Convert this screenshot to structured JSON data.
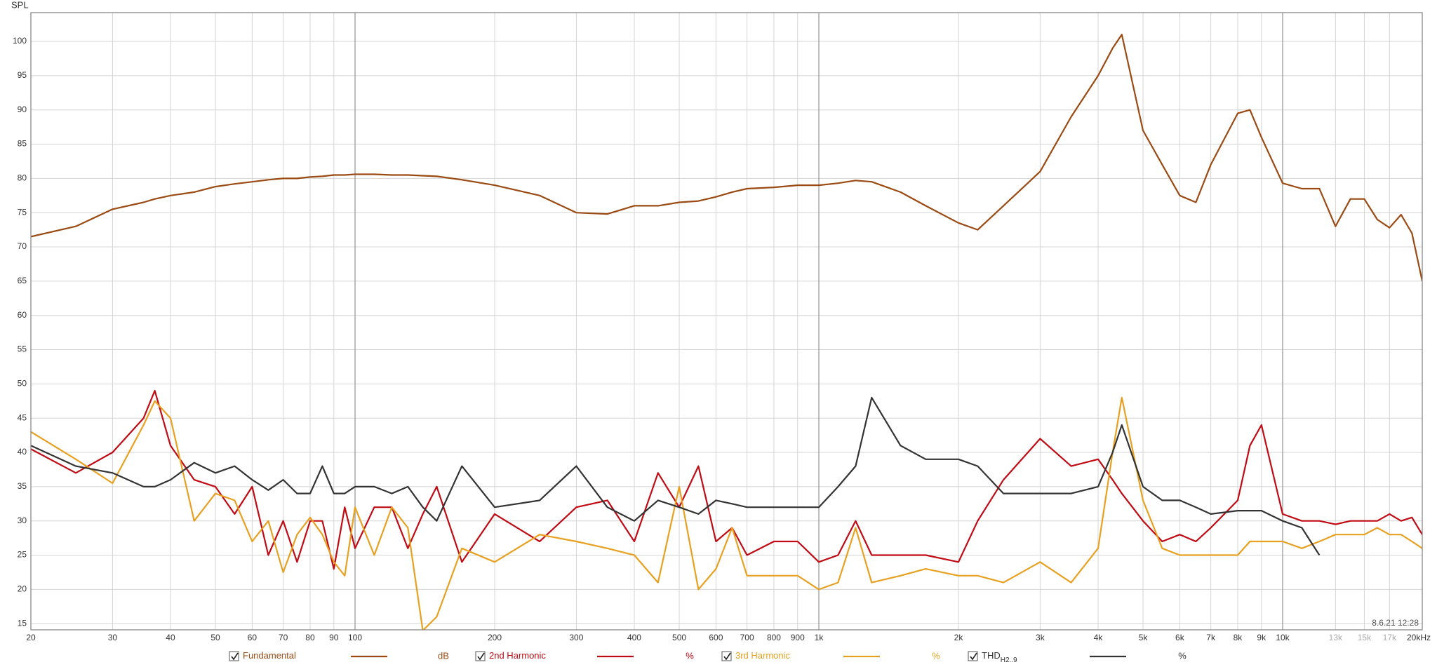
{
  "chart_data": {
    "type": "line",
    "y_label": "SPL",
    "timestamp": "8.6.21 12:28",
    "xscale": "log",
    "grid": true,
    "xlim": [
      20,
      20000
    ],
    "ylim": [
      14.1,
      104.2
    ],
    "xticks": [
      20,
      30,
      40,
      50,
      60,
      70,
      80,
      90,
      100,
      200,
      300,
      400,
      500,
      600,
      700,
      800,
      900,
      {
        "value": 1000,
        "label": "1k"
      },
      {
        "value": 2000,
        "label": "2k"
      },
      {
        "value": 3000,
        "label": "3k"
      },
      {
        "value": 4000,
        "label": "4k"
      },
      {
        "value": 5000,
        "label": "5k"
      },
      {
        "value": 6000,
        "label": "6k"
      },
      {
        "value": 7000,
        "label": "7k"
      },
      {
        "value": 8000,
        "label": "8k"
      },
      {
        "value": 9000,
        "label": "9k"
      },
      {
        "value": 10000,
        "label": "10k"
      },
      {
        "value": 13000,
        "label": "13k",
        "muted": true
      },
      {
        "value": 15000,
        "label": "15k",
        "muted": true
      },
      {
        "value": 17000,
        "label": "17k",
        "muted": true
      },
      {
        "value": 20000,
        "label": "20kHz"
      }
    ],
    "yticks": [
      15,
      20,
      25,
      30,
      35,
      40,
      45,
      50,
      55,
      60,
      65,
      70,
      75,
      80,
      85,
      90,
      95,
      100
    ],
    "x": [
      20,
      25,
      30,
      35,
      37,
      40,
      45,
      50,
      55,
      60,
      65,
      70,
      75,
      80,
      85,
      90,
      95,
      100,
      110,
      120,
      130,
      140,
      150,
      170,
      200,
      250,
      300,
      350,
      400,
      450,
      500,
      550,
      600,
      650,
      700,
      800,
      900,
      1000,
      1100,
      1200,
      1300,
      1500,
      1700,
      2000,
      2200,
      2500,
      3000,
      3500,
      4000,
      4300,
      4500,
      5000,
      5500,
      6000,
      6500,
      7000,
      8000,
      8500,
      9000,
      10000,
      11000,
      12000,
      13000,
      14000,
      15000,
      16000,
      17000,
      18000,
      19000,
      20000
    ],
    "series": [
      {
        "name": "Fundamental",
        "unit": "dB",
        "color": "#9a4a12",
        "values": [
          71.5,
          73,
          75.5,
          76.5,
          77,
          77.5,
          78,
          78.8,
          79.2,
          79.5,
          79.8,
          80,
          80,
          80.2,
          80.3,
          80.5,
          80.5,
          80.6,
          80.6,
          80.5,
          80.5,
          80.4,
          80.3,
          79.8,
          79,
          77.5,
          75,
          74.8,
          76,
          76,
          76.5,
          76.7,
          77.3,
          78,
          78.5,
          78.7,
          79,
          79,
          79.3,
          79.7,
          79.5,
          78,
          76,
          73.5,
          72.5,
          76,
          81,
          89,
          95,
          99,
          101,
          87,
          82,
          77.5,
          76.5,
          82,
          89.5,
          90,
          86,
          79.3,
          78.5,
          78.5,
          73,
          77,
          77,
          74,
          72.8,
          74.7,
          72,
          65
        ]
      },
      {
        "name": "2nd Harmonic",
        "unit": "%",
        "color": "#c00a14",
        "values": [
          40.5,
          37,
          40,
          45,
          49,
          41,
          36,
          35,
          31,
          35,
          25,
          30,
          24,
          30,
          30,
          23,
          32,
          26,
          32,
          32,
          26,
          31,
          35,
          24,
          31,
          27,
          32,
          33,
          27,
          37,
          32,
          38,
          27,
          29,
          25,
          27,
          27,
          24,
          25,
          30,
          25,
          25,
          25,
          24,
          30,
          36,
          42,
          38,
          39,
          36,
          34,
          30,
          27,
          28,
          27,
          29,
          33,
          41,
          44,
          31,
          30,
          30,
          29.5,
          30,
          30,
          30,
          31,
          30,
          30.5,
          28
        ]
      },
      {
        "name": "3rd Harmonic",
        "unit": "%",
        "color": "#e8a020",
        "values": [
          43,
          39,
          35.5,
          44,
          47.5,
          45,
          30,
          34,
          33,
          27,
          30,
          22.5,
          28,
          30.5,
          28,
          24,
          22,
          32,
          25,
          32,
          29,
          14,
          16,
          26,
          24,
          28,
          27,
          26,
          25,
          21,
          35,
          20,
          23,
          29,
          22,
          22,
          22,
          20,
          21,
          29,
          21,
          22,
          23,
          22,
          22,
          21,
          24,
          21,
          26,
          40,
          48,
          33,
          26,
          25,
          25,
          25,
          25,
          27,
          27,
          27,
          26,
          27,
          28,
          28,
          28,
          29,
          28,
          28,
          27,
          26
        ]
      },
      {
        "name": "THD",
        "name_sub": "H2..9",
        "unit": "%",
        "color": "#333333",
        "values": [
          41,
          38,
          37,
          35,
          35,
          36,
          38.5,
          37,
          38,
          36,
          34.5,
          36,
          34,
          34,
          38,
          34,
          34,
          35,
          35,
          34,
          35,
          32,
          30,
          38,
          32,
          33,
          38,
          32,
          30,
          33,
          32,
          31,
          33,
          32.5,
          32,
          32,
          32,
          32,
          35,
          38,
          48,
          41,
          39,
          39,
          38,
          34,
          34,
          34,
          35,
          40,
          44,
          35,
          33,
          33,
          32,
          31,
          31.5,
          31.5,
          31.5,
          30,
          29,
          25,
          null,
          null,
          null,
          null,
          null,
          null,
          null,
          null
        ]
      }
    ]
  }
}
